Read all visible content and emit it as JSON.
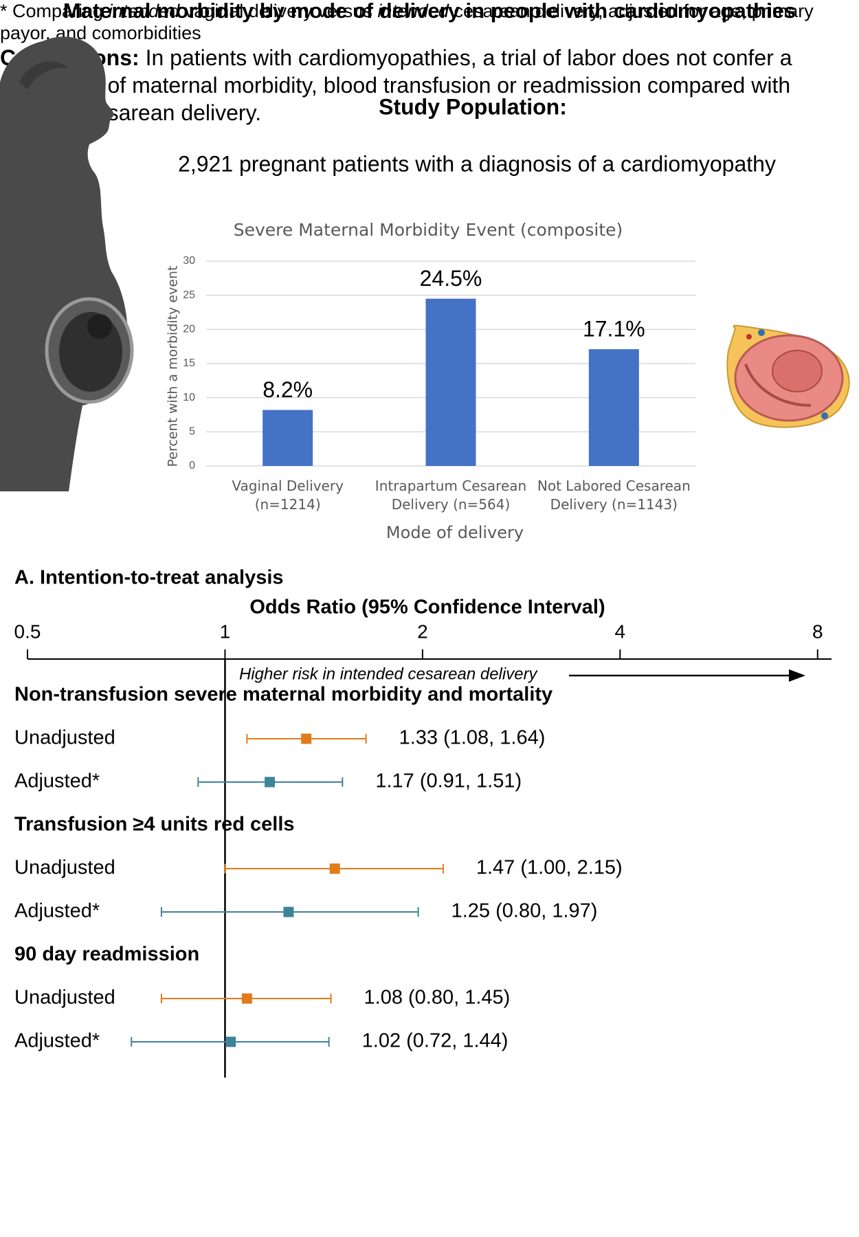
{
  "title": "Maternal morbidity by mode of delivery in people with cardiomyopathies",
  "study_population": {
    "heading": "Study Population:",
    "text": "2,921 pregnant patients with a diagnosis of a cardiomyopathy"
  },
  "chart_data": [
    {
      "type": "bar",
      "title": "Severe Maternal Morbidity Event (composite)",
      "x_label": "Mode of delivery",
      "y_label": "Percent with a morbidity event",
      "categories": [
        "Vaginal Delivery (n=1214)",
        "Intrapartum Cesarean Delivery (n=564)",
        "Not Labored Cesarean Delivery (n=1143)"
      ],
      "values": [
        8.2,
        24.5,
        17.1
      ],
      "value_labels": [
        "8.2%",
        "24.5%",
        "17.1%"
      ],
      "color": "#4472c4",
      "ylim": [
        0,
        30
      ],
      "yticks": [
        0,
        5,
        10,
        15,
        20,
        25,
        30
      ],
      "grid": true
    },
    {
      "type": "forest",
      "section_title": "A. Intention-to-treat analysis",
      "title": "Odds Ratio (95% Confidence Interval)",
      "log_scale": true,
      "xlim": [
        0.5,
        8.4
      ],
      "xticks": [
        0.5,
        1,
        2,
        4,
        8
      ],
      "reference": 1,
      "annotation": "Higher risk in intended cesarean delivery",
      "groups": [
        {
          "name": "Non-transfusion severe maternal morbidity and mortality",
          "rows": [
            {
              "label": "Unadjusted",
              "color": "#e07b1a",
              "estimate": 1.33,
              "lower": 1.08,
              "upper": 1.64,
              "value_label": "1.33 (1.08, 1.64)"
            },
            {
              "label": "Adjusted*",
              "color": "#3e8399",
              "estimate": 1.17,
              "lower": 0.91,
              "upper": 1.51,
              "value_label": "1.17 (0.91, 1.51)"
            }
          ]
        },
        {
          "name": "Transfusion ≥4 units red cells",
          "rows": [
            {
              "label": "Unadjusted",
              "color": "#e07b1a",
              "estimate": 1.47,
              "lower": 1.0,
              "upper": 2.15,
              "value_label": "1.47 (1.00, 2.15)"
            },
            {
              "label": "Adjusted*",
              "color": "#3e8399",
              "estimate": 1.25,
              "lower": 0.8,
              "upper": 1.97,
              "value_label": "1.25 (0.80, 1.97)"
            }
          ]
        },
        {
          "name": "90 day readmission",
          "rows": [
            {
              "label": "Unadjusted",
              "color": "#e07b1a",
              "estimate": 1.08,
              "lower": 0.8,
              "upper": 1.45,
              "value_label": "1.08 (0.80, 1.45)"
            },
            {
              "label": "Adjusted*",
              "color": "#3e8399",
              "estimate": 1.02,
              "lower": 0.72,
              "upper": 1.44,
              "value_label": "1.02 (0.72, 1.44)"
            }
          ]
        }
      ],
      "footnote": [
        "* Comparing ",
        "intended",
        " vaginal delivery versus ",
        "intended",
        " cesarean delivery, adjusted for age, primary payor, and comorbidities"
      ]
    }
  ],
  "conclusions": {
    "label": "Conclusions:",
    "text": "In patients with cardiomyopathies, a trial of labor does not confer a higher risk of maternal morbidity, blood transfusion or readmission compared with planned cesarean delivery."
  }
}
